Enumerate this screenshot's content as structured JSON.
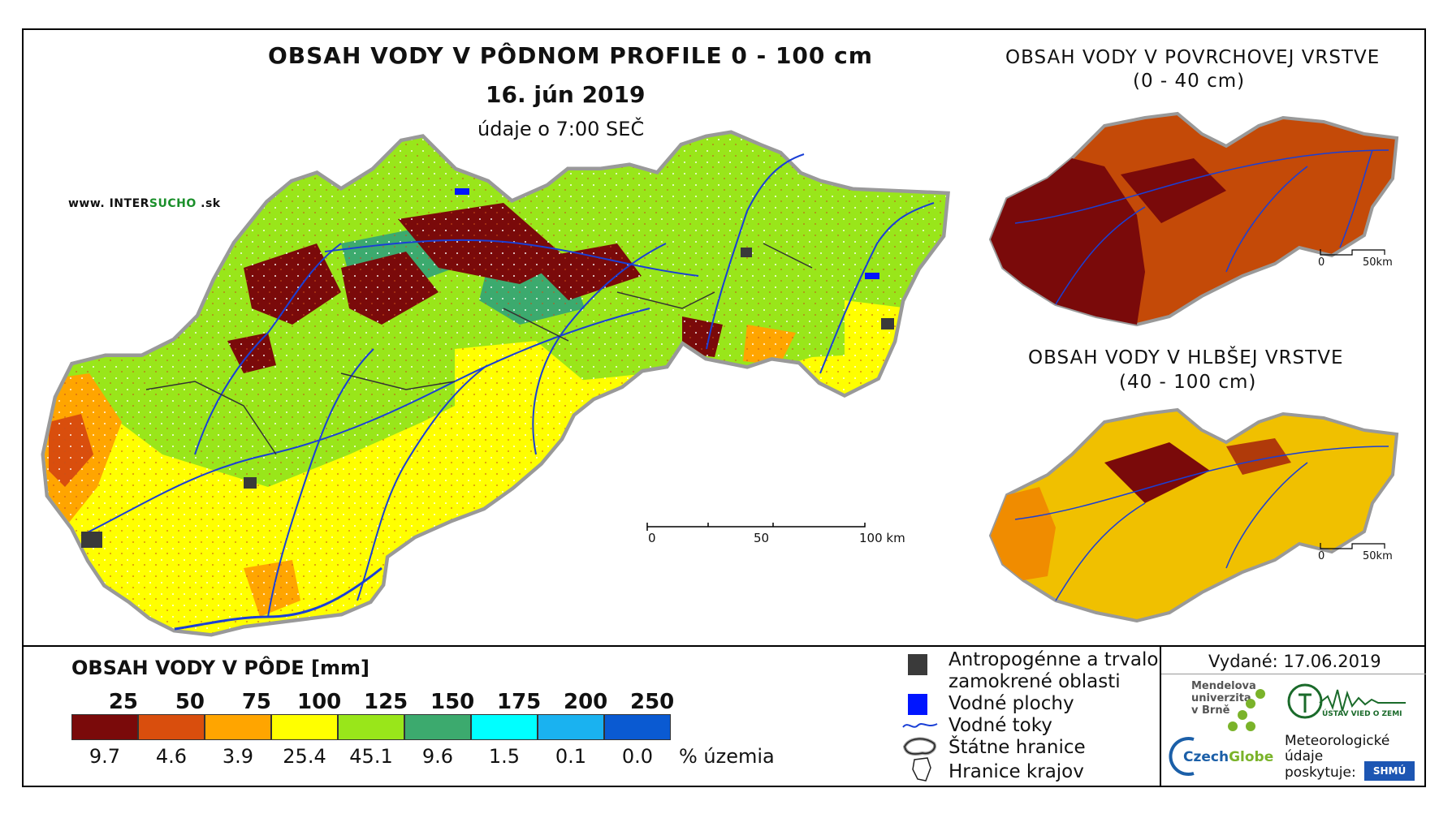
{
  "title": "OBSAH VODY V PÔDNOM PROFILE 0 - 100 cm",
  "date": "16. jún 2019",
  "time_note": "údaje o 7:00 SEČ",
  "website": {
    "prefix": "www. INTER",
    "highlight": "SUCHO",
    "suffix": " .sk"
  },
  "inset_surface": {
    "line1": "OBSAH VODY V POVRCHOVEJ VRSTVE",
    "line2": "(0 - 40 cm)"
  },
  "inset_deep": {
    "line1": "OBSAH VODY V HLBŠEJ VRSTVE",
    "line2": "(40 - 100 cm)"
  },
  "scale_main": {
    "l0": "0",
    "l1": "50",
    "l2": "100 km"
  },
  "scale_inset_top": {
    "l0": "0",
    "l1": "50km"
  },
  "scale_inset_bottom": {
    "l0": "0",
    "l1": "50km"
  },
  "legend": {
    "title": "OBSAH VODY V PÔDE [mm]",
    "thresholds": [
      "25",
      "50",
      "75",
      "100",
      "125",
      "150",
      "175",
      "200",
      "250"
    ],
    "classes": [
      {
        "color": "#7a0a0a",
        "pct": "9.7"
      },
      {
        "color": "#d94e0d",
        "pct": "4.6"
      },
      {
        "color": "#ffa500",
        "pct": "3.9"
      },
      {
        "color": "#ffff00",
        "pct": "25.4"
      },
      {
        "color": "#99e61a",
        "pct": "45.1"
      },
      {
        "color": "#3caa6e",
        "pct": "9.6"
      },
      {
        "color": "#00ffff",
        "pct": "1.5"
      },
      {
        "color": "#1ab2f0",
        "pct": "0.1"
      },
      {
        "color": "#0a5ad2",
        "pct": "0.0"
      }
    ],
    "pct_unit": "% územia"
  },
  "symbols": {
    "anthropogenic_1": "Antropogénne a trvalo",
    "anthropogenic_2": "zamokrené oblasti",
    "water_bodies": "Vodné plochy",
    "streams": "Vodné toky",
    "state_border": "Štátne hranice",
    "region_border": "Hranice krajov"
  },
  "issued": "Vydané: 17.06.2019",
  "logos": {
    "mendel_1": "Mendelova",
    "mendel_2": "univerzita",
    "mendel_3": "v Brně",
    "czechglobe_a": "Czech",
    "czechglobe_b": "Globe",
    "uvz": "ÚSTAV VIED O ZEMI",
    "meteo_1": "Meteorologické",
    "meteo_2": "údaje",
    "meteo_3": "poskytuje:",
    "shmu": "SHMÚ"
  }
}
